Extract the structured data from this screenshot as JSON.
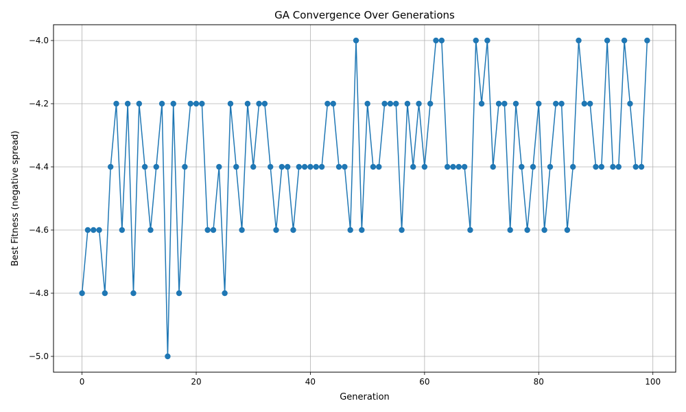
{
  "chart_data": {
    "type": "line",
    "title": "GA Convergence Over Generations",
    "xlabel": "Generation",
    "ylabel": "Best Fitness (negative spread)",
    "xlim": [
      -5,
      104
    ],
    "ylim": [
      -5.05,
      -3.95
    ],
    "x_ticks": [
      0,
      20,
      40,
      60,
      80,
      100
    ],
    "x_tick_labels": [
      "0",
      "20",
      "40",
      "60",
      "80",
      "100"
    ],
    "y_ticks": [
      -5.0,
      -4.8,
      -4.6,
      -4.4,
      -4.2,
      -4.0
    ],
    "y_tick_labels": [
      "−5.0",
      "−4.8",
      "−4.6",
      "−4.4",
      "−4.2",
      "−4.0"
    ],
    "grid": true,
    "marker": "circle",
    "color": "#1f77b4",
    "x": [
      0,
      1,
      2,
      3,
      4,
      5,
      6,
      7,
      8,
      9,
      10,
      11,
      12,
      13,
      14,
      15,
      16,
      17,
      18,
      19,
      20,
      21,
      22,
      23,
      24,
      25,
      26,
      27,
      28,
      29,
      30,
      31,
      32,
      33,
      34,
      35,
      36,
      37,
      38,
      39,
      40,
      41,
      42,
      43,
      44,
      45,
      46,
      47,
      48,
      49,
      50,
      51,
      52,
      53,
      54,
      55,
      56,
      57,
      58,
      59,
      60,
      61,
      62,
      63,
      64,
      65,
      66,
      67,
      68,
      69,
      70,
      71,
      72,
      73,
      74,
      75,
      76,
      77,
      78,
      79,
      80,
      81,
      82,
      83,
      84,
      85,
      86,
      87,
      88,
      89,
      90,
      91,
      92,
      93,
      94,
      95,
      96,
      97,
      98,
      99
    ],
    "y": [
      -4.8,
      -4.6,
      -4.6,
      -4.6,
      -4.8,
      -4.4,
      -4.2,
      -4.6,
      -4.2,
      -4.8,
      -4.2,
      -4.4,
      -4.6,
      -4.4,
      -4.2,
      -5.0,
      -4.2,
      -4.8,
      -4.4,
      -4.2,
      -4.2,
      -4.2,
      -4.6,
      -4.6,
      -4.4,
      -4.8,
      -4.2,
      -4.4,
      -4.6,
      -4.2,
      -4.4,
      -4.2,
      -4.2,
      -4.4,
      -4.6,
      -4.4,
      -4.4,
      -4.6,
      -4.4,
      -4.4,
      -4.4,
      -4.4,
      -4.4,
      -4.2,
      -4.2,
      -4.4,
      -4.4,
      -4.6,
      -4.0,
      -4.6,
      -4.2,
      -4.4,
      -4.4,
      -4.2,
      -4.2,
      -4.2,
      -4.6,
      -4.2,
      -4.4,
      -4.2,
      -4.4,
      -4.2,
      -4.0,
      -4.0,
      -4.4,
      -4.4,
      -4.4,
      -4.4,
      -4.6,
      -4.0,
      -4.2,
      -4.0,
      -4.4,
      -4.2,
      -4.2,
      -4.6,
      -4.2,
      -4.4,
      -4.6,
      -4.4,
      -4.2,
      -4.6,
      -4.4,
      -4.2,
      -4.2,
      -4.6,
      -4.4,
      -4.0,
      -4.2,
      -4.2,
      -4.4,
      -4.4,
      -4.0,
      -4.4,
      -4.4,
      -4.0,
      -4.2,
      -4.4,
      -4.4,
      -4.0
    ]
  }
}
